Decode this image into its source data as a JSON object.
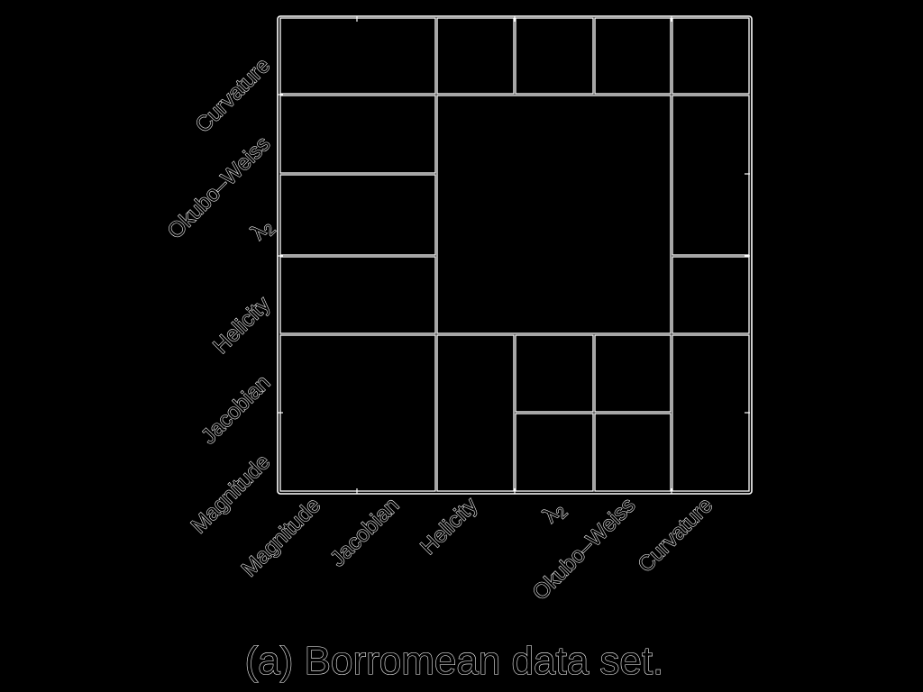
{
  "figure": {
    "caption": "(a) Borromean data set.",
    "colors": {
      "background": "#000000",
      "lines": "#ffffff"
    }
  },
  "matrix": {
    "x_labels": [
      "Magnitude",
      "Jacobian",
      "Helicity",
      "λ2",
      "Okubo–Weiss",
      "Curvature"
    ],
    "y_labels_bottom_to_top": [
      "Magnitude",
      "Jacobian",
      "Helicity",
      "λ2",
      "Okubo–Weiss",
      "Curvature"
    ],
    "blocks": [
      {
        "id": "top-left-block",
        "cols": [
          0,
          1
        ],
        "rows": [
          5,
          5
        ]
      },
      {
        "id": "top-helicity-block",
        "cols": [
          2,
          2
        ],
        "rows": [
          5,
          5
        ]
      },
      {
        "id": "top-lambda2-block",
        "cols": [
          3,
          3
        ],
        "rows": [
          5,
          5
        ]
      },
      {
        "id": "top-okubo-block",
        "cols": [
          4,
          4
        ],
        "rows": [
          5,
          5
        ]
      },
      {
        "id": "top-right-block",
        "cols": [
          5,
          5
        ],
        "rows": [
          5,
          5
        ]
      },
      {
        "id": "okubo-left-block",
        "cols": [
          0,
          1
        ],
        "rows": [
          4,
          4
        ]
      },
      {
        "id": "lambda2-left-block",
        "cols": [
          0,
          1
        ],
        "rows": [
          3,
          3
        ]
      },
      {
        "id": "helicity-left-block",
        "cols": [
          0,
          1
        ],
        "rows": [
          2,
          2
        ]
      },
      {
        "id": "center-large-block",
        "cols": [
          2,
          4
        ],
        "rows": [
          2,
          4
        ]
      },
      {
        "id": "right-upper-block",
        "cols": [
          5,
          5
        ],
        "rows": [
          3,
          4
        ]
      },
      {
        "id": "right-helicity-block",
        "cols": [
          5,
          5
        ],
        "rows": [
          2,
          2
        ]
      },
      {
        "id": "bottom-left-block",
        "cols": [
          0,
          1
        ],
        "rows": [
          0,
          1
        ]
      },
      {
        "id": "bottom-helicity-block",
        "cols": [
          2,
          2
        ],
        "rows": [
          0,
          1
        ]
      },
      {
        "id": "bottom-lambda2-jacobian-block",
        "cols": [
          3,
          3
        ],
        "rows": [
          1,
          1
        ]
      },
      {
        "id": "bottom-okubo-jacobian-block",
        "cols": [
          4,
          4
        ],
        "rows": [
          1,
          1
        ]
      },
      {
        "id": "bottom-lambda2-magnitude-block",
        "cols": [
          3,
          3
        ],
        "rows": [
          0,
          0
        ]
      },
      {
        "id": "bottom-okubo-magnitude-block",
        "cols": [
          4,
          4
        ],
        "rows": [
          0,
          0
        ]
      },
      {
        "id": "bottom-right-block",
        "cols": [
          5,
          5
        ],
        "rows": [
          0,
          1
        ]
      }
    ]
  }
}
